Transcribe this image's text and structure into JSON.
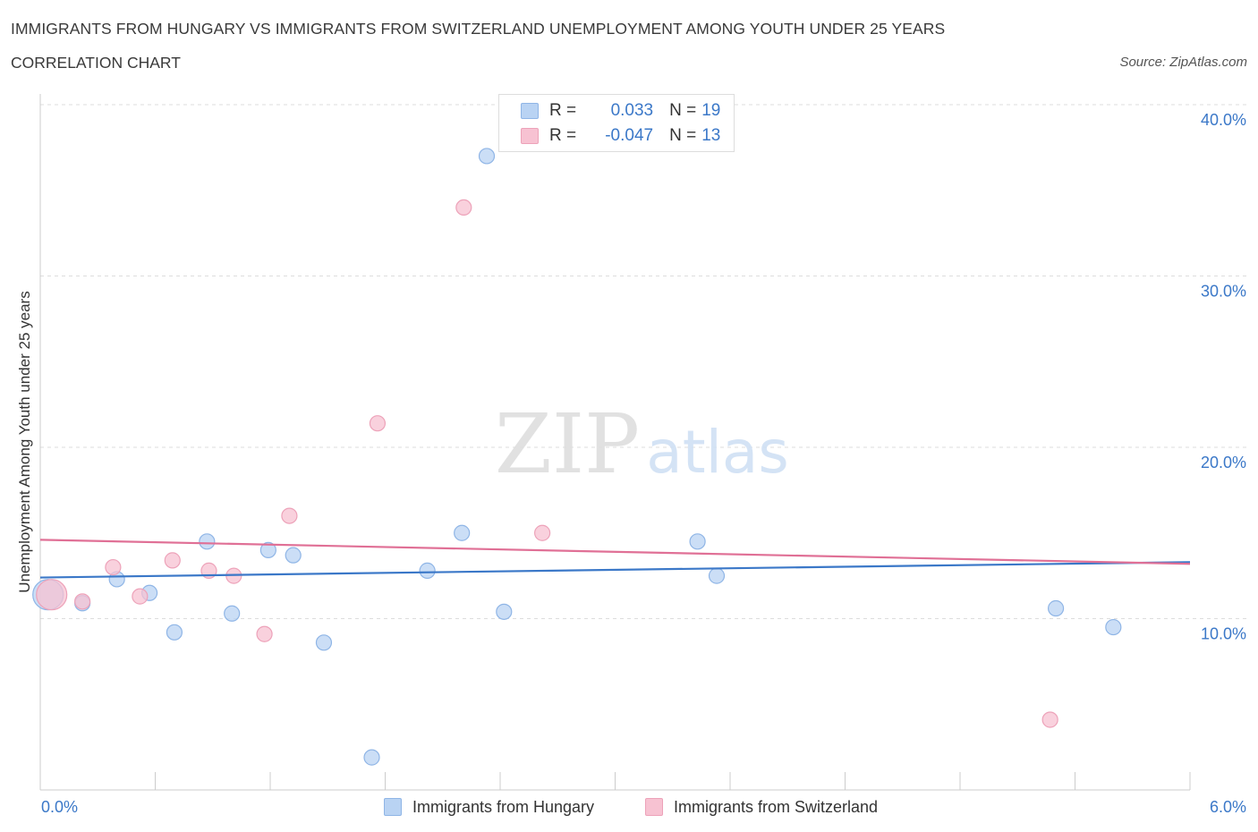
{
  "title": "IMMIGRANTS FROM HUNGARY VS IMMIGRANTS FROM SWITZERLAND UNEMPLOYMENT AMONG YOUTH UNDER 25 YEARS",
  "subtitle": "CORRELATION CHART",
  "source": "Source: ZipAtlas.com",
  "watermark": {
    "zip": "ZIP",
    "atlas": "atlas"
  },
  "legend_stats": [
    {
      "r_label": "R =",
      "r_value": "0.033",
      "n_label": "N =",
      "n_value": "19"
    },
    {
      "r_label": "R =",
      "r_value": "-0.047",
      "n_label": "N =",
      "n_value": "13"
    }
  ],
  "colors": {
    "hungary_fill": "#b9d3f3",
    "hungary_stroke": "#8fb5e6",
    "hungary_line": "#3b78c8",
    "switzerland_fill": "#f7c2d2",
    "switzerland_stroke": "#eda2b9",
    "switzerland_line": "#e07096",
    "axis_text": "#3b78c8",
    "grid": "#dddddd"
  },
  "chart_data": {
    "type": "scatter",
    "title": "IMMIGRANTS FROM HUNGARY VS IMMIGRANTS FROM SWITZERLAND UNEMPLOYMENT AMONG YOUTH UNDER 25 YEARS",
    "xlabel": "",
    "ylabel": "Unemployment Among Youth under 25 years",
    "xlim": [
      0,
      6
    ],
    "ylim": [
      0,
      40
    ],
    "x_tick_labels": [
      "0.0%",
      "6.0%"
    ],
    "y_ticks": [
      10,
      20,
      30,
      40
    ],
    "y_tick_labels": [
      "10.0%",
      "20.0%",
      "30.0%",
      "40.0%"
    ],
    "grid": true,
    "legend_position": "bottom",
    "series": [
      {
        "name": "Immigrants from Hungary",
        "points": [
          {
            "x": 0.05,
            "y": 11.4,
            "big": true
          },
          {
            "x": 0.22,
            "y": 10.9
          },
          {
            "x": 0.4,
            "y": 12.3
          },
          {
            "x": 0.57,
            "y": 11.5
          },
          {
            "x": 0.7,
            "y": 9.2
          },
          {
            "x": 0.87,
            "y": 14.5
          },
          {
            "x": 1.0,
            "y": 10.3
          },
          {
            "x": 1.19,
            "y": 14.0
          },
          {
            "x": 1.32,
            "y": 13.7
          },
          {
            "x": 1.48,
            "y": 8.6
          },
          {
            "x": 1.73,
            "y": 1.9
          },
          {
            "x": 2.02,
            "y": 12.8
          },
          {
            "x": 2.2,
            "y": 15.0
          },
          {
            "x": 2.33,
            "y": 37.0
          },
          {
            "x": 2.42,
            "y": 10.4
          },
          {
            "x": 3.43,
            "y": 14.5
          },
          {
            "x": 3.53,
            "y": 12.5
          },
          {
            "x": 5.3,
            "y": 10.6
          },
          {
            "x": 5.6,
            "y": 9.5
          }
        ],
        "trend": {
          "x": [
            0,
            6
          ],
          "y": [
            12.4,
            13.3
          ]
        }
      },
      {
        "name": "Immigrants from Switzerland",
        "points": [
          {
            "x": 0.05,
            "y": 11.4,
            "big": true
          },
          {
            "x": 0.22,
            "y": 11.0
          },
          {
            "x": 0.38,
            "y": 13.0
          },
          {
            "x": 0.52,
            "y": 11.3
          },
          {
            "x": 0.69,
            "y": 13.4
          },
          {
            "x": 0.88,
            "y": 12.8
          },
          {
            "x": 1.01,
            "y": 12.5
          },
          {
            "x": 1.17,
            "y": 9.1
          },
          {
            "x": 1.3,
            "y": 16.0
          },
          {
            "x": 1.76,
            "y": 21.4
          },
          {
            "x": 2.21,
            "y": 34.0
          },
          {
            "x": 2.62,
            "y": 15.0
          },
          {
            "x": 5.27,
            "y": 4.1
          }
        ],
        "trend": {
          "x": [
            0,
            6
          ],
          "y": [
            14.6,
            13.2
          ]
        }
      }
    ]
  }
}
